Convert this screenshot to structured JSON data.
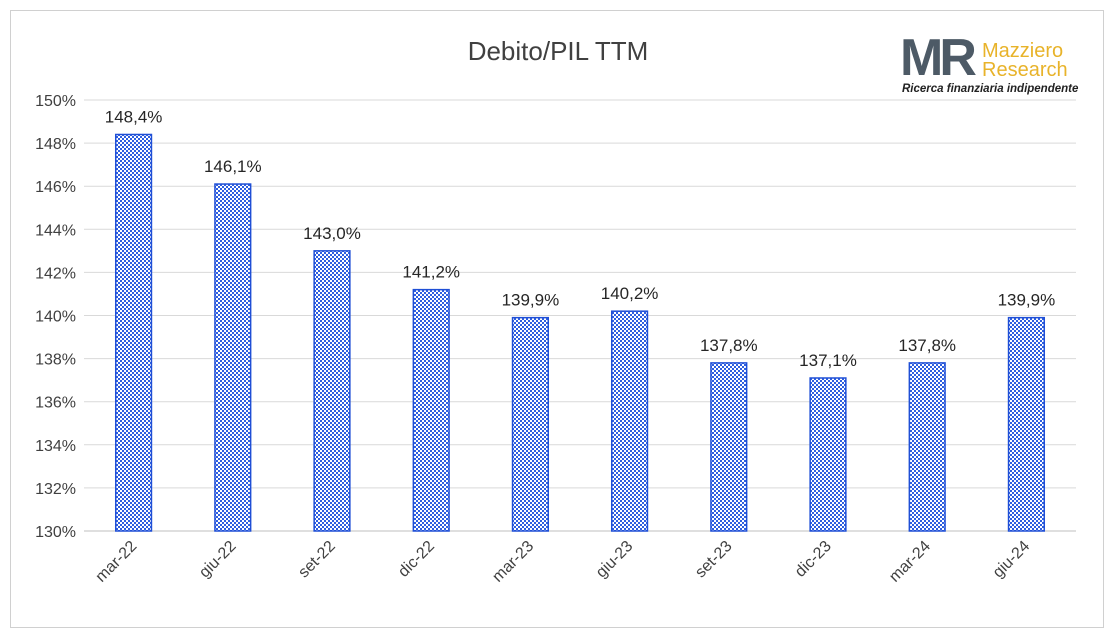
{
  "logo": {
    "mark": "MR",
    "name_line1": "Mazziero",
    "name_line2": "Research",
    "tagline": "Ricerca finanziaria indipendente"
  },
  "colors": {
    "bar_stroke": "#1f4fd6",
    "bar_pattern": "#2f5fe0",
    "gridline": "#d9d9d9",
    "axis": "#bfbfbf"
  },
  "chart_data": {
    "type": "bar",
    "title": "Debito/PIL TTM",
    "xlabel": "",
    "ylabel": "",
    "categories": [
      "mar-22",
      "giu-22",
      "set-22",
      "dic-22",
      "mar-23",
      "giu-23",
      "set-23",
      "dic-23",
      "mar-24",
      "giu-24"
    ],
    "values": [
      148.4,
      146.1,
      143.0,
      141.2,
      139.9,
      140.2,
      137.8,
      137.1,
      137.8,
      139.9
    ],
    "data_labels": [
      "148,4%",
      "146,1%",
      "143,0%",
      "141,2%",
      "139,9%",
      "140,2%",
      "137,8%",
      "137,1%",
      "137,8%",
      "139,9%"
    ],
    "ylim": [
      130,
      150
    ],
    "yticks": [
      130,
      132,
      134,
      136,
      138,
      140,
      142,
      144,
      146,
      148,
      150
    ],
    "ytick_labels": [
      "130%",
      "132%",
      "134%",
      "136%",
      "138%",
      "140%",
      "142%",
      "144%",
      "146%",
      "148%",
      "150%"
    ],
    "grid": true,
    "legend": "none",
    "bar_fill": "crosshatch pattern"
  }
}
